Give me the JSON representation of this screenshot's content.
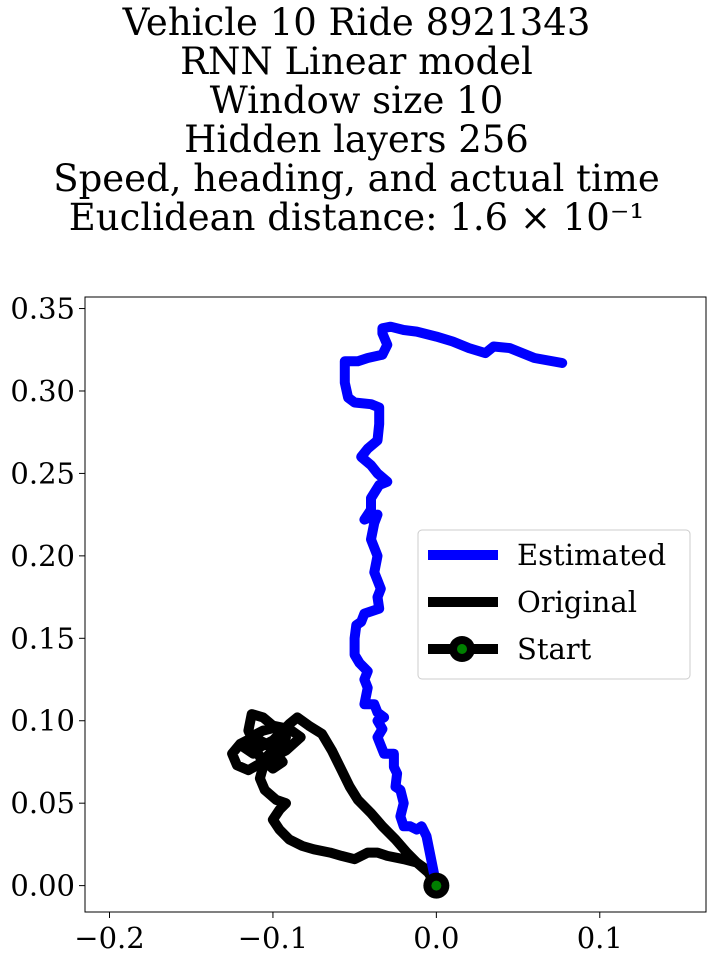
{
  "title_lines": [
    "Vehicle 10 Ride 8921343",
    "RNN Linear model",
    "Window size 10",
    "Hidden layers 256",
    "Speed, heading, and actual time",
    "Euclidean distance: 1.6 × 10⁻¹"
  ],
  "colors": {
    "estimated": "#0000ff",
    "original": "#000000",
    "start_marker": "#008000"
  },
  "chart_data": {
    "type": "line",
    "xlim": [
      -0.215,
      0.165
    ],
    "ylim": [
      -0.016,
      0.357
    ],
    "x_ticks": [
      -0.2,
      -0.1,
      0.0,
      0.1
    ],
    "x_tick_labels": [
      "−0.2",
      "−0.1",
      "0.0",
      "0.1"
    ],
    "y_ticks": [
      0.0,
      0.05,
      0.1,
      0.15,
      0.2,
      0.25,
      0.3,
      0.35
    ],
    "y_tick_labels": [
      "0.00",
      "0.05",
      "0.10",
      "0.15",
      "0.20",
      "0.25",
      "0.30",
      "0.35"
    ],
    "legend_position": "center-right",
    "grid": false,
    "series": [
      {
        "name": "Estimated",
        "color": "#0000ff",
        "points": [
          [
            0.0,
            0.0
          ],
          [
            -0.002,
            0.01
          ],
          [
            -0.004,
            0.02
          ],
          [
            -0.006,
            0.03
          ],
          [
            -0.009,
            0.036
          ],
          [
            -0.012,
            0.034
          ],
          [
            -0.016,
            0.036
          ],
          [
            -0.02,
            0.036
          ],
          [
            -0.022,
            0.042
          ],
          [
            -0.02,
            0.05
          ],
          [
            -0.022,
            0.058
          ],
          [
            -0.025,
            0.06
          ],
          [
            -0.024,
            0.068
          ],
          [
            -0.026,
            0.072
          ],
          [
            -0.026,
            0.08
          ],
          [
            -0.032,
            0.08
          ],
          [
            -0.034,
            0.085
          ],
          [
            -0.036,
            0.09
          ],
          [
            -0.033,
            0.095
          ],
          [
            -0.036,
            0.1
          ],
          [
            -0.032,
            0.102
          ],
          [
            -0.036,
            0.105
          ],
          [
            -0.038,
            0.11
          ],
          [
            -0.044,
            0.11
          ],
          [
            -0.042,
            0.12
          ],
          [
            -0.044,
            0.125
          ],
          [
            -0.042,
            0.13
          ],
          [
            -0.047,
            0.135
          ],
          [
            -0.05,
            0.14
          ],
          [
            -0.05,
            0.15
          ],
          [
            -0.049,
            0.158
          ],
          [
            -0.046,
            0.16
          ],
          [
            -0.044,
            0.165
          ],
          [
            -0.035,
            0.168
          ],
          [
            -0.036,
            0.175
          ],
          [
            -0.034,
            0.18
          ],
          [
            -0.038,
            0.19
          ],
          [
            -0.036,
            0.2
          ],
          [
            -0.04,
            0.21
          ],
          [
            -0.038,
            0.22
          ],
          [
            -0.036,
            0.225
          ],
          [
            -0.044,
            0.222
          ],
          [
            -0.04,
            0.228
          ],
          [
            -0.04,
            0.235
          ],
          [
            -0.035,
            0.243
          ],
          [
            -0.03,
            0.245
          ],
          [
            -0.036,
            0.25
          ],
          [
            -0.04,
            0.255
          ],
          [
            -0.046,
            0.26
          ],
          [
            -0.042,
            0.265
          ],
          [
            -0.036,
            0.27
          ],
          [
            -0.035,
            0.28
          ],
          [
            -0.035,
            0.29
          ],
          [
            -0.04,
            0.292
          ],
          [
            -0.05,
            0.293
          ],
          [
            -0.054,
            0.296
          ],
          [
            -0.056,
            0.305
          ],
          [
            -0.056,
            0.318
          ],
          [
            -0.048,
            0.318
          ],
          [
            -0.042,
            0.32
          ],
          [
            -0.033,
            0.322
          ],
          [
            -0.03,
            0.328
          ],
          [
            -0.033,
            0.335
          ],
          [
            -0.033,
            0.338
          ],
          [
            -0.028,
            0.339
          ],
          [
            -0.02,
            0.337
          ],
          [
            -0.012,
            0.336
          ],
          [
            0.0,
            0.333
          ],
          [
            0.01,
            0.33
          ],
          [
            0.02,
            0.326
          ],
          [
            0.03,
            0.323
          ],
          [
            0.035,
            0.327
          ],
          [
            0.045,
            0.326
          ],
          [
            0.06,
            0.32
          ],
          [
            0.077,
            0.317
          ]
        ]
      },
      {
        "name": "Original",
        "color": "#000000",
        "points": [
          [
            0.0,
            0.0
          ],
          [
            -0.005,
            0.008
          ],
          [
            -0.012,
            0.014
          ],
          [
            -0.018,
            0.02
          ],
          [
            -0.025,
            0.028
          ],
          [
            -0.033,
            0.036
          ],
          [
            -0.04,
            0.044
          ],
          [
            -0.048,
            0.052
          ],
          [
            -0.053,
            0.06
          ],
          [
            -0.058,
            0.07
          ],
          [
            -0.064,
            0.082
          ],
          [
            -0.07,
            0.092
          ],
          [
            -0.078,
            0.097
          ],
          [
            -0.085,
            0.102
          ],
          [
            -0.09,
            0.098
          ],
          [
            -0.094,
            0.094
          ],
          [
            -0.1,
            0.088
          ],
          [
            -0.108,
            0.084
          ],
          [
            -0.112,
            0.08
          ],
          [
            -0.118,
            0.084
          ],
          [
            -0.114,
            0.09
          ],
          [
            -0.106,
            0.094
          ],
          [
            -0.098,
            0.096
          ],
          [
            -0.092,
            0.09
          ],
          [
            -0.1,
            0.082
          ],
          [
            -0.108,
            0.074
          ],
          [
            -0.115,
            0.07
          ],
          [
            -0.122,
            0.073
          ],
          [
            -0.125,
            0.08
          ],
          [
            -0.12,
            0.086
          ],
          [
            -0.112,
            0.09
          ],
          [
            -0.104,
            0.086
          ],
          [
            -0.098,
            0.08
          ],
          [
            -0.094,
            0.075
          ],
          [
            -0.1,
            0.071
          ],
          [
            -0.108,
            0.078
          ],
          [
            -0.115,
            0.094
          ],
          [
            -0.113,
            0.104
          ],
          [
            -0.106,
            0.102
          ],
          [
            -0.1,
            0.097
          ],
          [
            -0.09,
            0.095
          ],
          [
            -0.083,
            0.09
          ],
          [
            -0.092,
            0.082
          ],
          [
            -0.1,
            0.078
          ],
          [
            -0.106,
            0.072
          ],
          [
            -0.108,
            0.065
          ],
          [
            -0.105,
            0.058
          ],
          [
            -0.098,
            0.052
          ],
          [
            -0.092,
            0.05
          ],
          [
            -0.096,
            0.046
          ],
          [
            -0.1,
            0.04
          ],
          [
            -0.096,
            0.034
          ],
          [
            -0.09,
            0.028
          ],
          [
            -0.082,
            0.024
          ],
          [
            -0.075,
            0.022
          ],
          [
            -0.065,
            0.02
          ],
          [
            -0.058,
            0.018
          ],
          [
            -0.05,
            0.016
          ],
          [
            -0.042,
            0.02
          ],
          [
            -0.036,
            0.02
          ],
          [
            -0.03,
            0.018
          ],
          [
            -0.02,
            0.016
          ],
          [
            -0.012,
            0.014
          ],
          [
            -0.005,
            0.009
          ],
          [
            0.0,
            0.0
          ]
        ]
      },
      {
        "name": "Start",
        "color": "#000000",
        "points": [
          [
            0.0,
            0.0
          ]
        ]
      }
    ]
  }
}
